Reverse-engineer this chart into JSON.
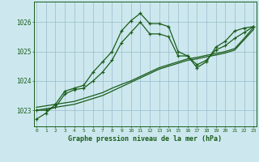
{
  "xlabel": "Graphe pression niveau de la mer (hPa)",
  "x": [
    0,
    1,
    2,
    3,
    4,
    5,
    6,
    7,
    8,
    9,
    10,
    11,
    12,
    13,
    14,
    15,
    16,
    17,
    18,
    19,
    20,
    21,
    22,
    23
  ],
  "line1": [
    1022.7,
    1022.9,
    1023.2,
    1023.65,
    1023.75,
    1023.85,
    1024.3,
    1024.65,
    1025.0,
    1025.7,
    1026.05,
    1026.3,
    1025.95,
    1025.95,
    1025.85,
    1025.0,
    1024.85,
    1024.45,
    1024.65,
    1025.15,
    1025.35,
    1025.7,
    1025.8,
    1025.85
  ],
  "line2": [
    1023.0,
    1023.0,
    1023.1,
    1023.55,
    1023.7,
    1023.75,
    1024.0,
    1024.3,
    1024.7,
    1025.3,
    1025.65,
    1026.0,
    1025.6,
    1025.6,
    1025.5,
    1024.85,
    1024.85,
    1024.55,
    1024.7,
    1025.05,
    1025.2,
    1025.45,
    1025.65,
    1025.85
  ],
  "line3": [
    1023.0,
    1023.05,
    1023.1,
    1023.15,
    1023.2,
    1023.3,
    1023.4,
    1023.5,
    1023.65,
    1023.8,
    1023.95,
    1024.1,
    1024.25,
    1024.4,
    1024.5,
    1024.6,
    1024.7,
    1024.75,
    1024.82,
    1024.88,
    1024.95,
    1025.05,
    1025.4,
    1025.75
  ],
  "line4": [
    1023.1,
    1023.15,
    1023.2,
    1023.25,
    1023.3,
    1023.4,
    1023.5,
    1023.6,
    1023.75,
    1023.88,
    1024.0,
    1024.15,
    1024.3,
    1024.45,
    1024.55,
    1024.65,
    1024.75,
    1024.8,
    1024.87,
    1024.93,
    1025.0,
    1025.1,
    1025.45,
    1025.82
  ],
  "bg_color": "#cce8ee",
  "line_color": "#1a5c1a",
  "grid_color": "#99bbcc",
  "text_color": "#1a5c1a",
  "ylim": [
    1022.45,
    1026.7
  ],
  "yticks": [
    1023,
    1024,
    1025,
    1026
  ],
  "xlim": [
    -0.3,
    23.3
  ]
}
